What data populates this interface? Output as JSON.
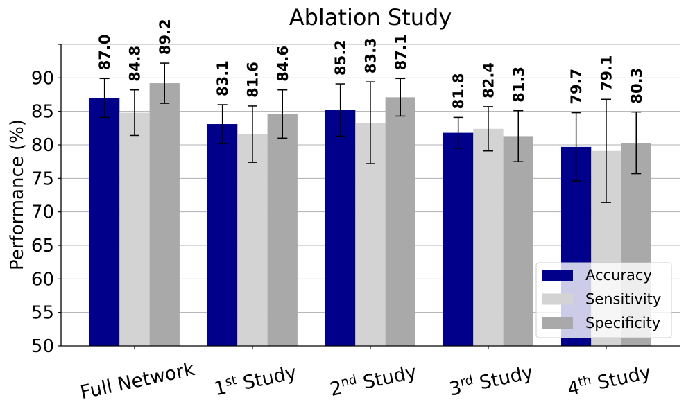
{
  "chart_data": {
    "type": "bar",
    "title": "Ablation Study",
    "xlabel": "",
    "ylabel": "Performance (%)",
    "ylim": [
      50,
      95
    ],
    "yticks": [
      50,
      55,
      60,
      65,
      70,
      75,
      80,
      85,
      90
    ],
    "grid": "horizontal",
    "legend_position": "bottom-right",
    "categories": [
      {
        "base": "Full Network",
        "sup": "",
        "rest": ""
      },
      {
        "base": "1",
        "sup": "st",
        "rest": " Study"
      },
      {
        "base": "2",
        "sup": "nd",
        "rest": " Study"
      },
      {
        "base": "3",
        "sup": "rd",
        "rest": " Study"
      },
      {
        "base": "4",
        "sup": "th",
        "rest": " Study"
      }
    ],
    "series": [
      {
        "name": "Accuracy",
        "color": "#00008b",
        "values": [
          87.0,
          83.1,
          85.2,
          81.8,
          79.7
        ],
        "err": [
          2.9,
          2.9,
          3.9,
          2.3,
          5.1
        ],
        "labels": [
          "87.0",
          "83.1",
          "85.2",
          "81.8",
          "79.7"
        ]
      },
      {
        "name": "Sensitivity",
        "color": "#d3d3d3",
        "values": [
          84.8,
          81.6,
          83.3,
          82.4,
          79.1
        ],
        "err": [
          3.4,
          4.2,
          6.1,
          3.3,
          7.7
        ],
        "labels": [
          "84.8",
          "81.6",
          "83.3",
          "82.4",
          "79.1"
        ]
      },
      {
        "name": "Specificity",
        "color": "#a9a9a9",
        "values": [
          89.2,
          84.6,
          87.1,
          81.3,
          80.3
        ],
        "err": [
          3.0,
          3.6,
          2.8,
          3.8,
          4.6
        ],
        "labels": [
          "89.2",
          "84.6",
          "87.1",
          "81.3",
          "80.3"
        ]
      }
    ]
  }
}
